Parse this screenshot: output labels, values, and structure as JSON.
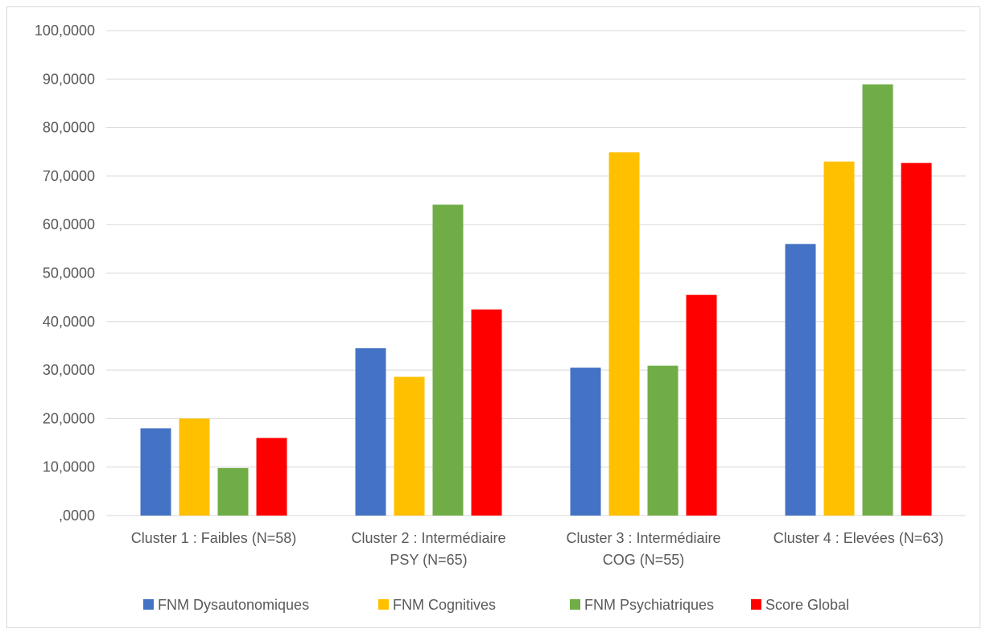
{
  "chart_data": {
    "type": "bar",
    "title": "",
    "xlabel": "",
    "ylabel": "",
    "categories": [
      [
        "Cluster 1 : Faibles (N=58)"
      ],
      [
        "Cluster 2 : Intermédiaire",
        "PSY (N=65)"
      ],
      [
        "Cluster 3 : Intermédiaire",
        "COG (N=55)"
      ],
      [
        "Cluster 4 : Elevées (N=63)"
      ]
    ],
    "series": [
      {
        "name": "FNM Dysautonomiques",
        "color": "#4472C4",
        "values": [
          18.0,
          34.5,
          30.5,
          56.0
        ]
      },
      {
        "name": "FNM Cognitives",
        "color": "#FFC000",
        "values": [
          20.0,
          28.6,
          74.9,
          73.0
        ]
      },
      {
        "name": "FNM Psychiatriques",
        "color": "#70AD47",
        "values": [
          9.8,
          64.1,
          30.9,
          88.9
        ]
      },
      {
        "name": "Score Global",
        "color": "#FF0000",
        "values": [
          16.0,
          42.5,
          45.5,
          72.7
        ]
      }
    ],
    "ylim": [
      0,
      100
    ],
    "yticks": [
      0,
      10,
      20,
      30,
      40,
      50,
      60,
      70,
      80,
      90,
      100
    ],
    "ytick_labels": [
      ",0000",
      "10,0000",
      "20,0000",
      "30,0000",
      "40,0000",
      "50,0000",
      "60,0000",
      "70,0000",
      "80,0000",
      "90,0000",
      "100,0000"
    ],
    "grid": true,
    "gridline_color": "#d9d9d9",
    "legend_position": "bottom"
  }
}
